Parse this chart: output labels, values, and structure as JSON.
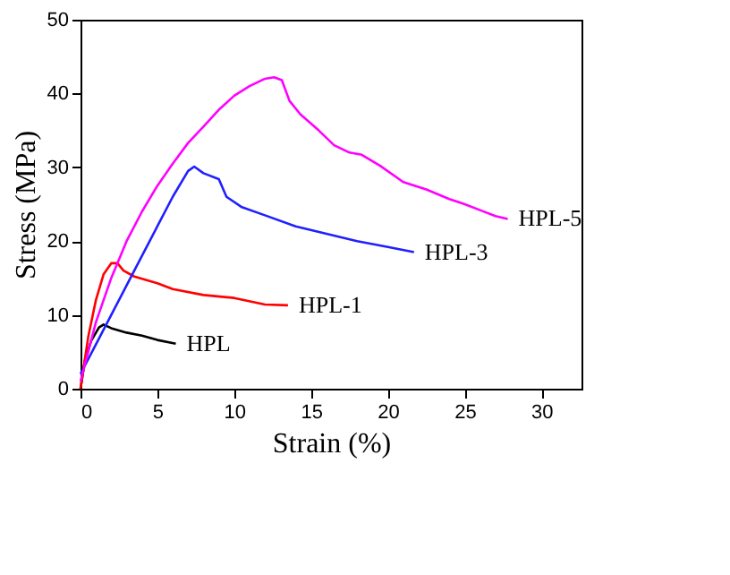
{
  "chart_data": {
    "type": "line",
    "xlabel": "Strain (%)",
    "ylabel": "Stress (MPa)",
    "xlim": [
      0,
      32.6
    ],
    "xticks": [
      0,
      5,
      10,
      15,
      20,
      25,
      30
    ],
    "ylim": [
      0,
      50
    ],
    "yticks": [
      0,
      10,
      20,
      30,
      40,
      50
    ],
    "grid": false,
    "legend": false,
    "marker": "none",
    "line_style": "solid",
    "series": [
      {
        "name": "HPL",
        "color": "#000000",
        "x": [
          0,
          0.3,
          0.7,
          1.2,
          1.5,
          2,
          3,
          4,
          5,
          6.2
        ],
        "values": [
          0,
          4,
          6.5,
          8.3,
          8.7,
          8.2,
          7.6,
          7.2,
          6.6,
          6.1
        ]
      },
      {
        "name": "HPL-1",
        "color": "#ff0000",
        "x": [
          0,
          0.5,
          1,
          1.5,
          2,
          2.4,
          2.8,
          3.5,
          5,
          6,
          8,
          10,
          12,
          13.5
        ],
        "values": [
          0,
          7,
          12,
          15.5,
          17,
          17,
          16,
          15.2,
          14.3,
          13.5,
          12.7,
          12.3,
          11.4,
          11.3
        ]
      },
      {
        "name": "HPL-3",
        "color": "#2020ff",
        "x": [
          0,
          1,
          2,
          3,
          4,
          5,
          6,
          7,
          7.4,
          8,
          9,
          9.5,
          10.5,
          12,
          14,
          16,
          18,
          20,
          21.7
        ],
        "values": [
          2,
          6,
          10,
          14,
          18,
          22,
          26,
          29.5,
          30.1,
          29.2,
          28.4,
          26,
          24.6,
          23.5,
          22,
          21,
          20,
          19.2,
          18.5
        ]
      },
      {
        "name": "HPL-5",
        "color": "#ff00ff",
        "x": [
          0,
          0.5,
          1,
          2,
          3,
          4,
          5,
          6,
          7,
          8,
          9,
          10,
          11,
          12,
          12.6,
          13.1,
          13.6,
          14.3,
          15.5,
          16.5,
          17.5,
          18.3,
          19.5,
          21,
          22.5,
          24,
          25,
          26,
          27,
          27.8
        ],
        "values": [
          1,
          5,
          9,
          15,
          20,
          24,
          27.5,
          30.5,
          33.3,
          35.5,
          37.8,
          39.7,
          41,
          42,
          42.2,
          41.8,
          39,
          37.2,
          35,
          33,
          32,
          31.7,
          30.2,
          28,
          27,
          25.7,
          25,
          24.2,
          23.4,
          23
        ]
      }
    ]
  }
}
